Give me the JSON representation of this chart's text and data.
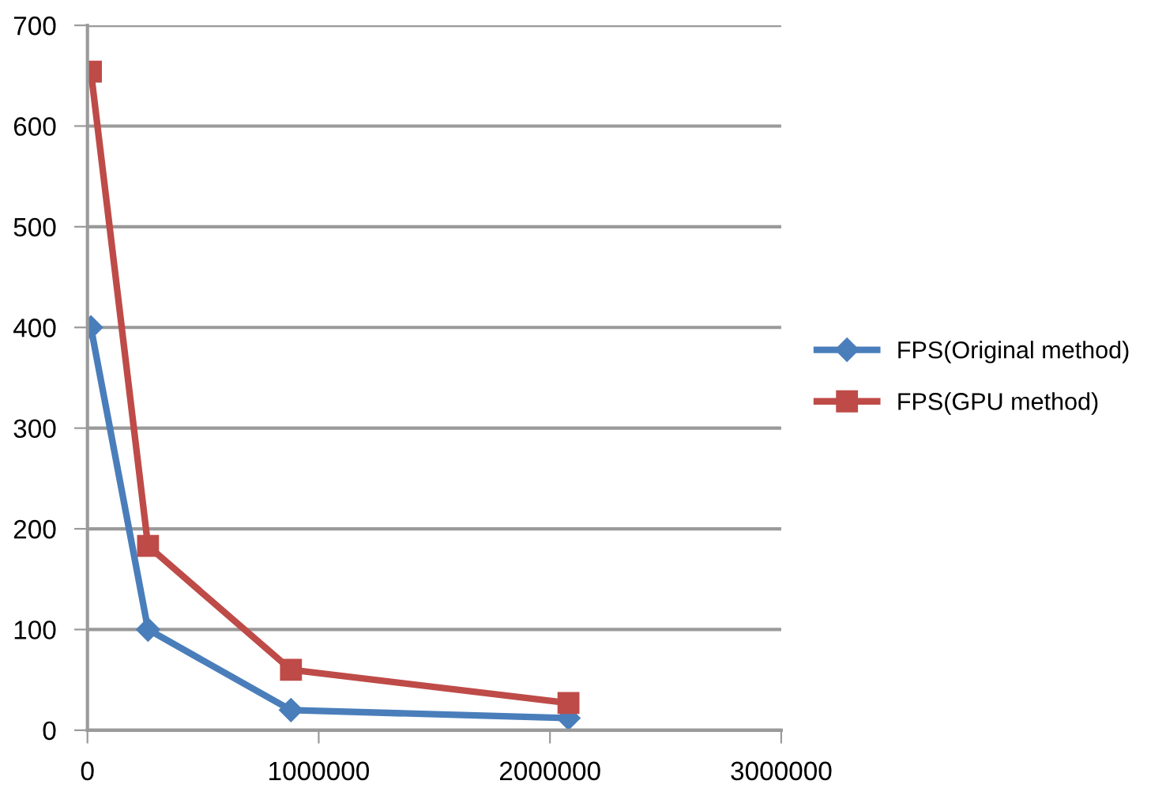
{
  "chart_data": {
    "type": "line",
    "x": [
      15000,
      262000,
      880000,
      2080000
    ],
    "series": [
      {
        "name": "FPS(Original method)",
        "color": "#4a7ebb",
        "marker": "diamond",
        "values": [
          400,
          100,
          20,
          12
        ]
      },
      {
        "name": "FPS(GPU method)",
        "color": "#be4b48",
        "marker": "square",
        "values": [
          654,
          183,
          60,
          27
        ]
      }
    ],
    "xlim": [
      0,
      3000000
    ],
    "xticks": [
      0,
      1000000,
      2000000,
      3000000
    ],
    "ylim": [
      0,
      700
    ],
    "yticks": [
      0,
      100,
      200,
      300,
      400,
      500,
      600,
      700
    ],
    "grid": "y",
    "legend": "right"
  }
}
